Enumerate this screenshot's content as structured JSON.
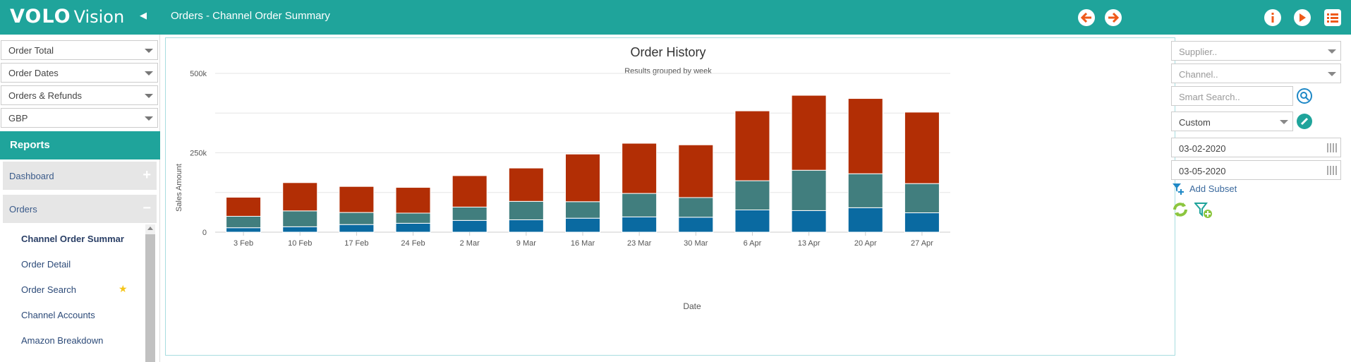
{
  "header": {
    "logo_main": "VOLO",
    "logo_sub": "Vision",
    "collapse_icon": "◀",
    "title": "Orders - Channel Order Summary",
    "icons": [
      "back-arrow-icon",
      "forward-arrow-icon",
      "info-icon",
      "play-icon",
      "menu-list-icon"
    ],
    "colors": {
      "bar": "#1fa49b",
      "accent": "#ef5a1a"
    }
  },
  "sidebar": {
    "filters": [
      "Order Total",
      "Order Dates",
      "Orders & Refunds",
      "GBP"
    ],
    "reports_label": "Reports",
    "groups": [
      {
        "label": "Dashboard",
        "sign": "+"
      },
      {
        "label": "Orders",
        "sign": "−"
      }
    ],
    "items": [
      {
        "label": "Channel Order Summar"
      },
      {
        "label": "Order Detail"
      },
      {
        "label": "Order Search"
      },
      {
        "label": "Channel Accounts"
      },
      {
        "label": "Amazon Breakdown"
      }
    ],
    "favorite_icon": "★"
  },
  "right_panel": {
    "supplier_placeholder": "Supplier..",
    "channel_placeholder": "Channel..",
    "search_placeholder": "Smart Search..",
    "range_value": "Custom",
    "date_from": "03-02-2020",
    "date_to": "03-05-2020",
    "add_subset_label": "Add Subset"
  },
  "chart_data": {
    "type": "bar",
    "stacked": true,
    "title": "Order History",
    "subtitle": "Results grouped by week",
    "xlabel": "Date",
    "ylabel": "Sales Amount",
    "ylim": [
      0,
      500000
    ],
    "yticks": [
      {
        "value": 0,
        "label": "0"
      },
      {
        "value": 250000,
        "label": "250k"
      },
      {
        "value": 500000,
        "label": "500k"
      }
    ],
    "categories": [
      "3 Feb",
      "10 Feb",
      "17 Feb",
      "24 Feb",
      "2 Mar",
      "9 Mar",
      "16 Mar",
      "23 Mar",
      "30 Mar",
      "6 Apr",
      "13 Apr",
      "20 Apr",
      "27 Apr"
    ],
    "series": [
      {
        "color": "#0a6aa1",
        "values": [
          14000,
          17000,
          24000,
          28000,
          37000,
          39000,
          44000,
          48000,
          47000,
          70000,
          68000,
          77000,
          61000
        ]
      },
      {
        "color": "#417e7e",
        "values": [
          36000,
          50000,
          38000,
          32000,
          42000,
          58000,
          52000,
          74000,
          62000,
          92000,
          127000,
          107000,
          92000
        ]
      },
      {
        "color": "#b22e05",
        "values": [
          60000,
          89000,
          82000,
          81000,
          99000,
          105000,
          150000,
          158000,
          166000,
          220000,
          236000,
          237000,
          225000
        ]
      }
    ],
    "grid": true,
    "legend": "none"
  }
}
